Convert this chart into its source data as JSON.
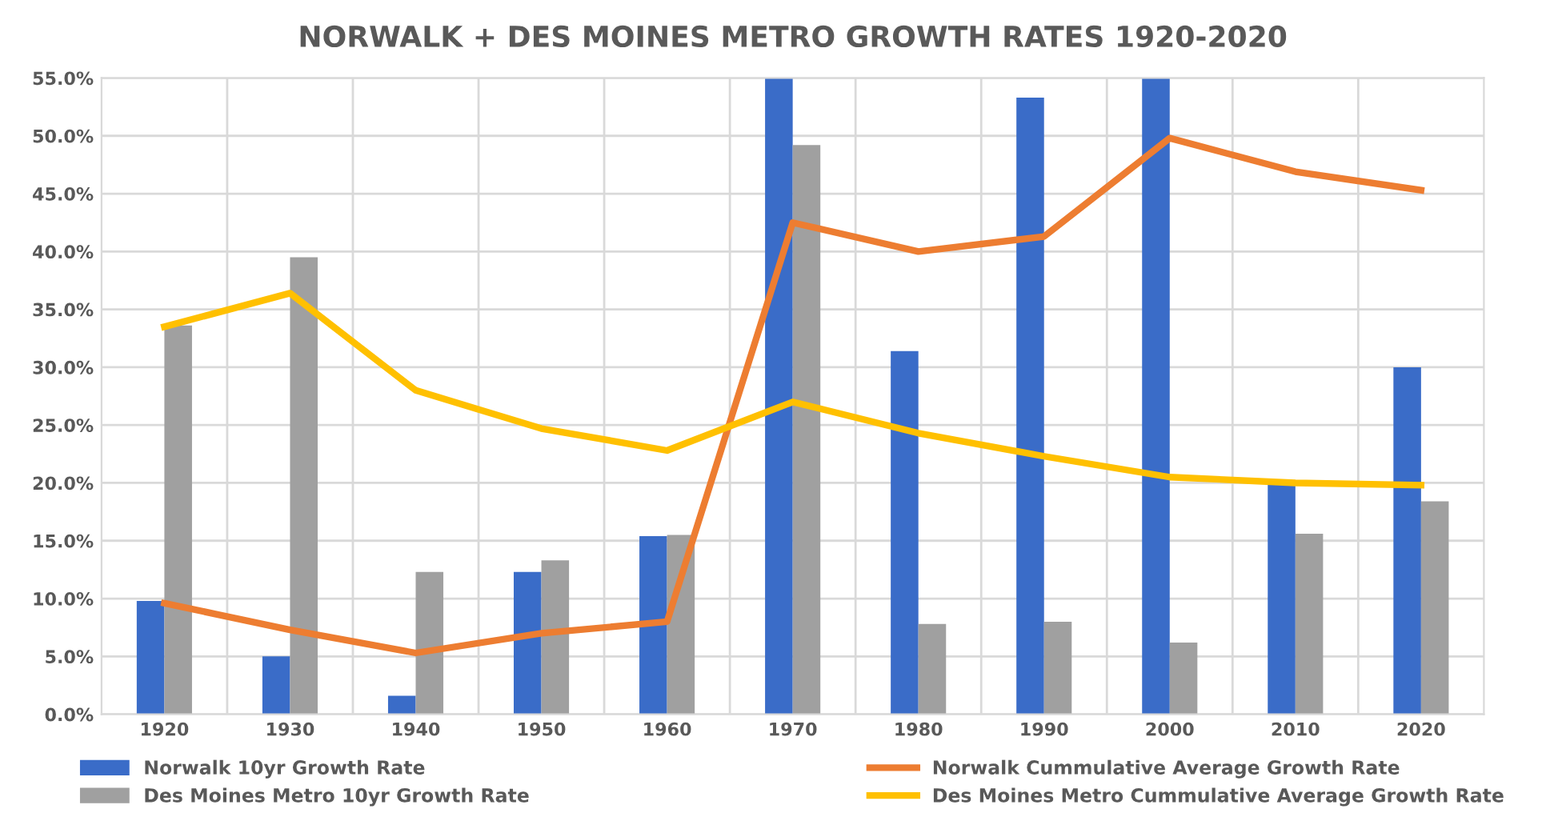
{
  "chart_data": {
    "type": "bar",
    "title": "NORWALK + DES MOINES METRO GROWTH RATES 1920-2020",
    "categories": [
      "1920",
      "1930",
      "1940",
      "1950",
      "1960",
      "1970",
      "1980",
      "1990",
      "2000",
      "2010",
      "2020"
    ],
    "series": [
      {
        "name": "Norwalk 10yr Growth Rate",
        "color": "#3a6cc8",
        "values": [
          9.8,
          5.0,
          1.6,
          12.3,
          15.4,
          55.0,
          31.4,
          53.3,
          55.0,
          20.1,
          30.0
        ]
      },
      {
        "name": "Des Moines Metro 10yr Growth Rate",
        "color": "#a0a0a0",
        "values": [
          33.6,
          39.5,
          12.3,
          13.3,
          15.5,
          49.2,
          7.8,
          8.0,
          6.2,
          15.6,
          18.4
        ]
      },
      {
        "name": "Norwalk Cummulative Average Growth Rate",
        "type": "line",
        "color": "#ed7d31",
        "values": [
          9.6,
          7.3,
          5.3,
          7.0,
          8.0,
          42.5,
          40.0,
          41.3,
          49.8,
          46.9,
          45.3
        ]
      },
      {
        "name": "Des Moines Metro Cummulative Average Growth Rate",
        "type": "line",
        "color": "#ffc000",
        "values": [
          33.5,
          36.4,
          28.0,
          24.7,
          22.8,
          27.0,
          24.3,
          22.3,
          20.5,
          20.0,
          19.8
        ]
      }
    ],
    "ylim": [
      0,
      55
    ],
    "yticks": [
      {
        "value": 0,
        "label": "0.0%"
      },
      {
        "value": 5,
        "label": "5.0%"
      },
      {
        "value": 10,
        "label": "10.0%"
      },
      {
        "value": 15,
        "label": "15.0%"
      },
      {
        "value": 20,
        "label": "20.0%"
      },
      {
        "value": 25,
        "label": "25.0%"
      },
      {
        "value": 30,
        "label": "30.0%"
      },
      {
        "value": 35,
        "label": "35.0%"
      },
      {
        "value": 40,
        "label": "40.0%"
      },
      {
        "value": 45,
        "label": "45.0%"
      },
      {
        "value": 50,
        "label": "50.0%"
      },
      {
        "value": 55,
        "label": "55.0%"
      }
    ],
    "grid": true,
    "legend": "bottom",
    "marker": "none",
    "line_style": "solid"
  }
}
